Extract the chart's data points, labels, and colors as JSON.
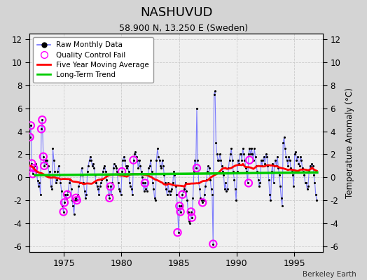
{
  "title": "NASHUVUD",
  "subtitle": "58.900 N, 13.250 E (Sweden)",
  "ylabel": "Temperature Anomaly (°C)",
  "credit": "Berkeley Earth",
  "ylim": [
    -6.5,
    12.5
  ],
  "xlim": [
    1972.0,
    1997.5
  ],
  "xticks": [
    1975,
    1980,
    1985,
    1990,
    1995
  ],
  "yticks": [
    -6,
    -4,
    -2,
    0,
    2,
    4,
    6,
    8,
    10,
    12
  ],
  "background_color": "#d4d4d4",
  "plot_background": "#f0f0f0",
  "line_color": "#7070ff",
  "dot_color": "#000000",
  "ma_color": "#ff0000",
  "trend_color": "#00cc00",
  "qc_color": "#ff00ff",
  "legend_items": [
    "Raw Monthly Data",
    "Quality Control Fail",
    "Five Year Moving Average",
    "Long-Term Trend"
  ],
  "raw_data_values": [
    3.5,
    4.5,
    1.2,
    0.3,
    0.8,
    1.0,
    1.2,
    0.5,
    -0.3,
    -0.8,
    -0.5,
    -1.5,
    4.2,
    5.0,
    1.8,
    1.0,
    1.5,
    1.2,
    1.5,
    1.0,
    0.2,
    0.5,
    -0.8,
    -1.0,
    2.5,
    1.5,
    0.5,
    -0.5,
    -0.2,
    0.5,
    1.0,
    0.2,
    -0.5,
    -1.2,
    -2.5,
    -3.0,
    -2.2,
    -1.5,
    -1.8,
    -1.5,
    -1.2,
    -0.5,
    -0.2,
    -1.0,
    -2.0,
    -2.5,
    -3.2,
    -2.0,
    -1.8,
    -2.0,
    -1.5,
    -0.8,
    -0.5,
    0.2,
    0.8,
    0.2,
    -0.5,
    -1.2,
    -1.8,
    -1.5,
    0.5,
    1.0,
    1.5,
    1.8,
    1.5,
    1.0,
    1.2,
    0.8,
    0.2,
    -0.5,
    -0.8,
    -1.0,
    -1.5,
    -0.8,
    -0.5,
    -0.2,
    0.5,
    0.8,
    1.0,
    0.5,
    -0.2,
    -0.8,
    -1.5,
    -1.8,
    -0.8,
    -1.5,
    -0.5,
    0.8,
    1.2,
    1.0,
    0.8,
    0.5,
    -0.5,
    -1.0,
    -1.2,
    -1.5,
    0.5,
    1.5,
    1.8,
    1.5,
    1.0,
    0.8,
    1.0,
    0.5,
    -0.5,
    -0.8,
    -1.0,
    -1.5,
    1.5,
    2.0,
    2.2,
    1.8,
    1.5,
    0.8,
    1.5,
    1.0,
    0.5,
    0.0,
    -0.5,
    -1.2,
    -0.5,
    -1.0,
    -1.2,
    0.2,
    0.8,
    1.0,
    1.5,
    0.5,
    -0.5,
    -1.0,
    -1.8,
    -2.0,
    1.5,
    2.5,
    1.8,
    1.5,
    1.0,
    0.8,
    1.5,
    1.0,
    0.2,
    -0.5,
    -1.0,
    -1.5,
    -0.5,
    -1.2,
    -1.5,
    -1.2,
    -1.0,
    -0.5,
    0.5,
    0.2,
    -0.8,
    -1.5,
    -2.8,
    -4.8,
    -2.5,
    -3.0,
    -2.5,
    -1.5,
    -1.2,
    -1.0,
    -0.5,
    -1.2,
    -2.0,
    -3.0,
    -3.8,
    -4.0,
    -3.0,
    -3.5,
    -1.8,
    0.5,
    1.5,
    0.8,
    6.0,
    1.5,
    -0.5,
    -1.0,
    -1.8,
    -2.0,
    -2.2,
    -2.0,
    -1.5,
    -0.8,
    -0.2,
    0.5,
    1.0,
    0.8,
    -0.2,
    -1.0,
    -1.5,
    -5.8,
    7.2,
    7.5,
    3.0,
    2.0,
    1.5,
    1.5,
    2.0,
    1.5,
    1.0,
    0.5,
    0.2,
    -1.0,
    -0.5,
    -1.2,
    -1.0,
    0.8,
    1.5,
    2.0,
    2.5,
    1.5,
    0.5,
    -0.2,
    -1.0,
    -2.0,
    0.5,
    1.5,
    1.2,
    2.0,
    2.0,
    1.5,
    2.5,
    2.0,
    1.5,
    0.8,
    0.5,
    -0.5,
    2.0,
    2.5,
    2.0,
    2.5,
    2.0,
    1.5,
    2.5,
    1.8,
    1.0,
    0.5,
    -0.2,
    -0.8,
    -0.5,
    1.5,
    1.0,
    1.5,
    1.8,
    1.2,
    2.0,
    1.8,
    1.0,
    -0.2,
    -1.5,
    -2.0,
    0.5,
    1.2,
    -0.5,
    1.0,
    1.5,
    1.0,
    1.8,
    0.8,
    0.2,
    -0.8,
    -1.8,
    -2.5,
    3.0,
    3.5,
    2.5,
    1.8,
    1.5,
    1.0,
    1.8,
    1.5,
    0.8,
    0.5,
    0.2,
    -0.8,
    2.0,
    2.2,
    1.5,
    1.8,
    1.2,
    1.0,
    1.8,
    1.5,
    0.8,
    0.5,
    0.2,
    -0.5,
    -0.5,
    -1.0,
    -0.8,
    0.5,
    1.0,
    0.8,
    1.2,
    1.0,
    0.2,
    -0.5,
    -1.5,
    -2.0
  ],
  "qc_fail_times": [
    1972.04,
    1972.12,
    1972.21,
    1972.29,
    1972.38,
    1973.04,
    1973.12,
    1973.21,
    1973.29,
    1974.96,
    1975.04,
    1975.29,
    1976.04,
    1976.12,
    1978.96,
    1979.04,
    1980.04,
    1981.04,
    1982.04,
    1984.87,
    1985.04,
    1985.12,
    1985.29,
    1986.04,
    1986.12,
    1986.54,
    1987.04,
    1987.96,
    1991.04,
    1991.12
  ],
  "qc_fail_values": [
    3.5,
    4.5,
    1.2,
    0.3,
    0.8,
    4.2,
    5.0,
    1.8,
    1.0,
    -3.0,
    -2.2,
    -1.5,
    -1.8,
    -2.0,
    -1.8,
    -0.8,
    0.5,
    1.5,
    -0.5,
    -4.8,
    -2.5,
    -3.0,
    -1.5,
    -3.0,
    -3.5,
    0.8,
    -2.2,
    -5.8,
    -0.5,
    1.5
  ],
  "trend_x": [
    1972.5,
    1997.0
  ],
  "trend_y": [
    0.18,
    0.42
  ]
}
